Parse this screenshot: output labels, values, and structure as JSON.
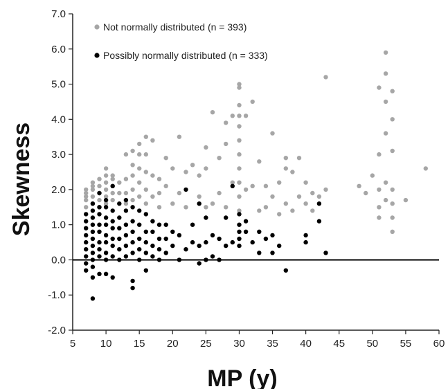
{
  "chart_data": {
    "type": "scatter",
    "xlabel": "MP (y)",
    "ylabel": "Skewness",
    "xlim": [
      5,
      60
    ],
    "ylim": [
      -2,
      7
    ],
    "x_ticks": [
      "5",
      "10",
      "15",
      "20",
      "25",
      "30",
      "35",
      "40",
      "45",
      "50",
      "55",
      "60"
    ],
    "y_ticks": [
      "-2.0",
      "-1.0",
      "0.0",
      "1.0",
      "2.0",
      "3.0",
      "4.0",
      "5.0",
      "6.0",
      "7.0"
    ],
    "reference_line_y": 0,
    "grid": false,
    "legend_position": "top-left",
    "series": [
      {
        "name": "Not normally distributed (n = 393)",
        "color": "#a6a6a6",
        "points": [
          [
            7,
            1.5
          ],
          [
            7,
            1.7
          ],
          [
            7,
            1.8
          ],
          [
            7,
            1.9
          ],
          [
            7,
            2.0
          ],
          [
            8,
            1.6
          ],
          [
            8,
            1.8
          ],
          [
            8,
            2.0
          ],
          [
            8,
            2.1
          ],
          [
            8,
            2.2
          ],
          [
            9,
            1.5
          ],
          [
            9,
            1.7
          ],
          [
            9,
            1.9
          ],
          [
            9,
            2.1
          ],
          [
            9,
            2.3
          ],
          [
            10,
            1.6
          ],
          [
            10,
            1.8
          ],
          [
            10,
            2.0
          ],
          [
            10,
            2.2
          ],
          [
            10,
            2.4
          ],
          [
            10,
            2.6
          ],
          [
            11,
            1.7
          ],
          [
            11,
            1.9
          ],
          [
            11,
            2.1
          ],
          [
            11,
            2.3
          ],
          [
            11,
            2.4
          ],
          [
            12,
            1.9
          ],
          [
            12,
            2.2
          ],
          [
            13,
            1.6
          ],
          [
            13,
            1.9
          ],
          [
            13,
            2.3
          ],
          [
            13,
            3.0
          ],
          [
            14,
            1.7
          ],
          [
            14,
            2.0
          ],
          [
            14,
            2.4
          ],
          [
            14,
            2.7
          ],
          [
            14,
            3.1
          ],
          [
            15,
            1.8
          ],
          [
            15,
            2.2
          ],
          [
            15,
            2.6
          ],
          [
            15,
            3.0
          ],
          [
            15,
            3.3
          ],
          [
            16,
            1.6
          ],
          [
            16,
            2.0
          ],
          [
            16,
            2.5
          ],
          [
            16,
            3.0
          ],
          [
            16,
            3.5
          ],
          [
            17,
            1.8
          ],
          [
            17,
            2.4
          ],
          [
            17,
            3.4
          ],
          [
            18,
            1.5
          ],
          [
            18,
            1.9
          ],
          [
            18,
            2.3
          ],
          [
            19,
            2.1
          ],
          [
            19,
            2.9
          ],
          [
            20,
            1.6
          ],
          [
            20,
            2.6
          ],
          [
            21,
            1.9
          ],
          [
            21,
            3.5
          ],
          [
            22,
            1.5
          ],
          [
            22,
            2.5
          ],
          [
            23,
            2.7
          ],
          [
            24,
            1.8
          ],
          [
            24,
            2.4
          ],
          [
            25,
            1.5
          ],
          [
            25,
            2.6
          ],
          [
            25,
            3.2
          ],
          [
            26,
            1.6
          ],
          [
            26,
            4.2
          ],
          [
            27,
            1.9
          ],
          [
            27,
            2.9
          ],
          [
            28,
            1.5
          ],
          [
            28,
            3.3
          ],
          [
            28,
            3.9
          ],
          [
            29,
            2.2
          ],
          [
            29,
            4.1
          ],
          [
            30,
            1.4
          ],
          [
            30,
            1.8
          ],
          [
            30,
            2.2
          ],
          [
            30,
            2.6
          ],
          [
            30,
            3.0
          ],
          [
            30,
            3.4
          ],
          [
            30,
            3.8
          ],
          [
            30,
            4.1
          ],
          [
            30,
            4.4
          ],
          [
            30,
            4.9
          ],
          [
            30,
            5.0
          ],
          [
            31,
            2.0
          ],
          [
            31,
            4.1
          ],
          [
            32,
            2.1
          ],
          [
            32,
            4.5
          ],
          [
            33,
            1.4
          ],
          [
            33,
            2.8
          ],
          [
            34,
            1.5
          ],
          [
            34,
            2.1
          ],
          [
            35,
            1.8
          ],
          [
            35,
            3.6
          ],
          [
            36,
            1.3
          ],
          [
            36,
            2.2
          ],
          [
            37,
            1.6
          ],
          [
            37,
            2.6
          ],
          [
            37,
            2.9
          ],
          [
            38,
            1.4
          ],
          [
            38,
            2.5
          ],
          [
            39,
            1.8
          ],
          [
            39,
            2.9
          ],
          [
            40,
            1.6
          ],
          [
            40,
            2.2
          ],
          [
            41,
            1.4
          ],
          [
            41,
            1.9
          ],
          [
            42,
            1.8
          ],
          [
            43,
            2.0
          ],
          [
            43,
            5.2
          ],
          [
            48,
            2.1
          ],
          [
            49,
            1.9
          ],
          [
            50,
            2.4
          ],
          [
            51,
            1.2
          ],
          [
            51,
            1.5
          ],
          [
            51,
            2.0
          ],
          [
            51,
            3.0
          ],
          [
            51,
            4.9
          ],
          [
            52,
            1.7
          ],
          [
            52,
            2.2
          ],
          [
            52,
            3.6
          ],
          [
            52,
            4.5
          ],
          [
            52,
            5.3
          ],
          [
            52,
            5.9
          ],
          [
            53,
            0.8
          ],
          [
            53,
            1.2
          ],
          [
            53,
            1.6
          ],
          [
            53,
            2.0
          ],
          [
            53,
            3.1
          ],
          [
            53,
            4.0
          ],
          [
            53,
            4.8
          ],
          [
            55,
            1.7
          ],
          [
            58,
            2.6
          ]
        ]
      },
      {
        "name": "Possibly normally distributed (n = 333)",
        "color": "#000000",
        "points": [
          [
            7,
            -0.3
          ],
          [
            7,
            -0.1
          ],
          [
            7,
            0.1
          ],
          [
            7,
            0.3
          ],
          [
            7,
            0.5
          ],
          [
            7,
            0.7
          ],
          [
            7,
            0.9
          ],
          [
            7,
            1.1
          ],
          [
            7,
            1.3
          ],
          [
            8,
            -1.1
          ],
          [
            8,
            -0.5
          ],
          [
            8,
            -0.2
          ],
          [
            8,
            0.0
          ],
          [
            8,
            0.2
          ],
          [
            8,
            0.4
          ],
          [
            8,
            0.6
          ],
          [
            8,
            0.8
          ],
          [
            8,
            1.0
          ],
          [
            8,
            1.2
          ],
          [
            8,
            1.4
          ],
          [
            8,
            1.6
          ],
          [
            9,
            -0.4
          ],
          [
            9,
            0.1
          ],
          [
            9,
            0.3
          ],
          [
            9,
            0.5
          ],
          [
            9,
            0.8
          ],
          [
            9,
            1.0
          ],
          [
            9,
            1.3
          ],
          [
            9,
            1.5
          ],
          [
            9,
            1.9
          ],
          [
            10,
            -0.4
          ],
          [
            10,
            0.0
          ],
          [
            10,
            0.2
          ],
          [
            10,
            0.5
          ],
          [
            10,
            0.7
          ],
          [
            10,
            1.0
          ],
          [
            10,
            1.2
          ],
          [
            10,
            1.5
          ],
          [
            10,
            1.7
          ],
          [
            11,
            -0.5
          ],
          [
            11,
            0.1
          ],
          [
            11,
            0.4
          ],
          [
            11,
            0.6
          ],
          [
            11,
            0.9
          ],
          [
            11,
            1.1
          ],
          [
            11,
            1.4
          ],
          [
            11,
            2.1
          ],
          [
            12,
            0.0
          ],
          [
            12,
            0.3
          ],
          [
            12,
            0.6
          ],
          [
            12,
            0.9
          ],
          [
            12,
            1.2
          ],
          [
            12,
            1.6
          ],
          [
            13,
            0.1
          ],
          [
            13,
            0.4
          ],
          [
            13,
            0.7
          ],
          [
            13,
            1.0
          ],
          [
            13,
            1.4
          ],
          [
            13,
            1.7
          ],
          [
            14,
            -0.8
          ],
          [
            14,
            -0.6
          ],
          [
            14,
            0.2
          ],
          [
            14,
            0.5
          ],
          [
            14,
            0.8
          ],
          [
            14,
            1.1
          ],
          [
            14,
            1.5
          ],
          [
            15,
            0.0
          ],
          [
            15,
            0.3
          ],
          [
            15,
            0.6
          ],
          [
            15,
            1.0
          ],
          [
            15,
            1.4
          ],
          [
            16,
            -0.3
          ],
          [
            16,
            0.2
          ],
          [
            16,
            0.5
          ],
          [
            16,
            0.8
          ],
          [
            16,
            1.3
          ],
          [
            17,
            0.1
          ],
          [
            17,
            0.4
          ],
          [
            17,
            0.8
          ],
          [
            17,
            1.1
          ],
          [
            18,
            0.0
          ],
          [
            18,
            0.3
          ],
          [
            18,
            0.6
          ],
          [
            18,
            1.0
          ],
          [
            19,
            0.2
          ],
          [
            19,
            0.6
          ],
          [
            19,
            1.0
          ],
          [
            20,
            0.4
          ],
          [
            20,
            0.8
          ],
          [
            21,
            0.0
          ],
          [
            21,
            0.7
          ],
          [
            22,
            0.3
          ],
          [
            22,
            2.0
          ],
          [
            23,
            0.5
          ],
          [
            23,
            1.0
          ],
          [
            24,
            -0.1
          ],
          [
            24,
            0.4
          ],
          [
            24,
            1.6
          ],
          [
            25,
            0.0
          ],
          [
            25,
            0.5
          ],
          [
            25,
            1.2
          ],
          [
            26,
            0.1
          ],
          [
            26,
            0.7
          ],
          [
            27,
            0.0
          ],
          [
            27,
            0.6
          ],
          [
            28,
            0.4
          ],
          [
            28,
            1.2
          ],
          [
            29,
            0.5
          ],
          [
            29,
            2.1
          ],
          [
            30,
            0.4
          ],
          [
            30,
            0.6
          ],
          [
            30,
            0.8
          ],
          [
            30,
            1.0
          ],
          [
            30,
            1.3
          ],
          [
            31,
            0.8
          ],
          [
            31,
            1.1
          ],
          [
            32,
            0.5
          ],
          [
            33,
            0.2
          ],
          [
            33,
            0.8
          ],
          [
            34,
            0.6
          ],
          [
            35,
            0.2
          ],
          [
            35,
            0.7
          ],
          [
            36,
            0.4
          ],
          [
            37,
            -0.3
          ],
          [
            40,
            0.5
          ],
          [
            40,
            0.7
          ],
          [
            42,
            1.1
          ],
          [
            42,
            1.6
          ],
          [
            43,
            0.2
          ]
        ]
      }
    ]
  }
}
